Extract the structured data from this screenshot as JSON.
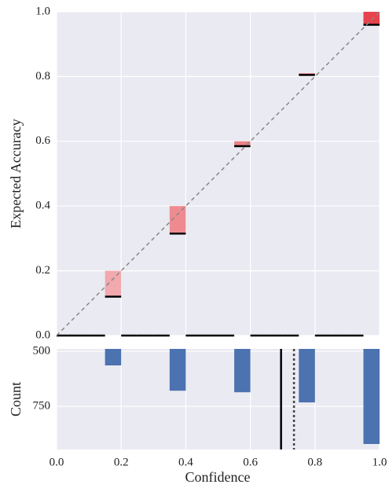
{
  "chart_data": [
    {
      "type": "reliability",
      "ylabel": "Expected Accuracy",
      "xlim": [
        0,
        1
      ],
      "ylim": [
        0,
        1
      ],
      "yticks": [
        {
          "value": 0,
          "label": "0.0"
        },
        {
          "value": 0.2,
          "label": "0.2"
        },
        {
          "value": 0.4,
          "label": "0.4"
        },
        {
          "value": 0.6,
          "label": "0.6"
        },
        {
          "value": 0.8,
          "label": "0.8"
        },
        {
          "value": 1,
          "label": "1.0"
        }
      ],
      "grid": true,
      "diagonal": true,
      "bins": [
        0,
        0.05,
        0.1,
        0.15,
        0.2,
        0.25,
        0.3,
        0.35,
        0.4,
        0.45,
        0.5,
        0.55,
        0.6,
        0.65,
        0.7,
        0.75,
        0.8,
        0.85,
        0.9,
        0.95,
        1
      ],
      "accuracy": [
        0,
        0,
        0,
        0.12,
        0,
        0,
        0,
        0.315,
        0,
        0,
        0,
        0.585,
        0,
        0,
        0,
        0.805,
        0,
        0,
        0,
        0.96
      ],
      "confidence": [
        null,
        null,
        null,
        0.2,
        null,
        null,
        null,
        0.4,
        null,
        null,
        null,
        0.6,
        null,
        null,
        null,
        0.81,
        null,
        null,
        null,
        1
      ],
      "gap_colors": [
        null,
        null,
        null,
        "#f1a9ae",
        null,
        null,
        null,
        "#ee8b91",
        null,
        null,
        null,
        "#ec8188",
        null,
        null,
        null,
        "#e9707a",
        null,
        null,
        null,
        "#e8424c"
      ]
    },
    {
      "type": "histogram",
      "xlabel": "Confidence",
      "ylabel": "Count",
      "xlim": [
        0,
        1
      ],
      "ylim": [
        946,
        489
      ],
      "xticks": [
        {
          "value": 0,
          "label": "0.0"
        },
        {
          "value": 0.2,
          "label": "0.2"
        },
        {
          "value": 0.4,
          "label": "0.4"
        },
        {
          "value": 0.6,
          "label": "0.6"
        },
        {
          "value": 0.8,
          "label": "0.8"
        },
        {
          "value": 1,
          "label": "1.0"
        }
      ],
      "yticks": [
        500,
        750
      ],
      "grid": true,
      "color": "#4c72b0",
      "bins": [
        0,
        0.05,
        0.1,
        0.15,
        0.2,
        0.25,
        0.3,
        0.35,
        0.4,
        0.45,
        0.5,
        0.55,
        0.6,
        0.65,
        0.7,
        0.75,
        0.8,
        0.85,
        0.9,
        0.95,
        1
      ],
      "counts": [
        null,
        null,
        null,
        564,
        null,
        null,
        null,
        679,
        null,
        null,
        null,
        686,
        null,
        null,
        null,
        732,
        null,
        null,
        null,
        921
      ],
      "accuracy_line": 0.695,
      "mean_confidence_line": 0.735
    }
  ]
}
